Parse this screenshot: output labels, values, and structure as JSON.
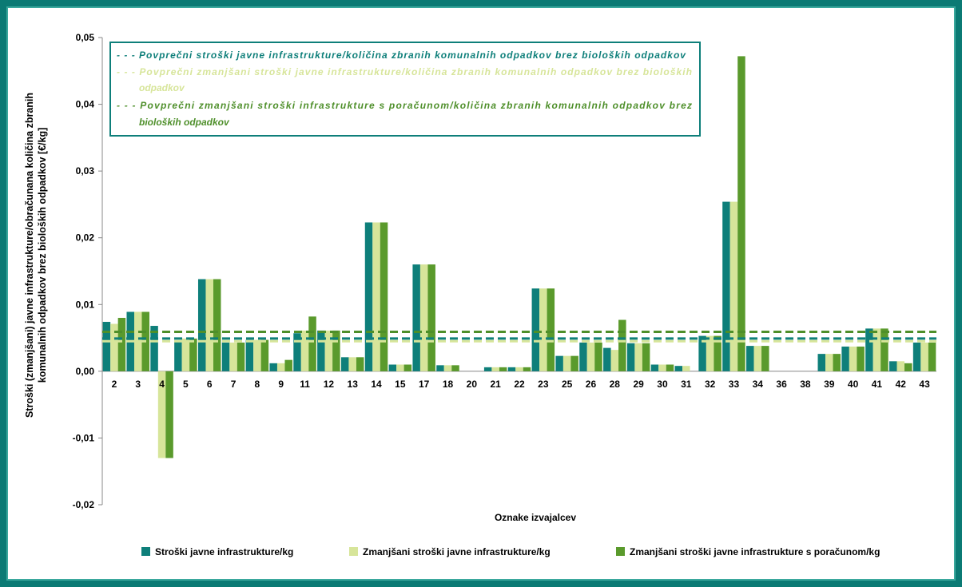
{
  "chart_data": {
    "type": "bar",
    "ylabel": "Stroški (zmanjšani) javne infrastrukture/obračunana količina zbranih komunalnih odpadkov brez bioloških odpadkov [€/kg]",
    "xlabel": "Oznake izvajalcev",
    "ylim": [
      -0.02,
      0.05
    ],
    "yticks": [
      "-0,02",
      "-0,01",
      "0,00",
      "0,01",
      "0,02",
      "0,03",
      "0,04",
      "0,05"
    ],
    "categories": [
      "2",
      "3",
      "4",
      "5",
      "6",
      "7",
      "8",
      "9",
      "11",
      "12",
      "13",
      "14",
      "15",
      "17",
      "18",
      "20",
      "21",
      "22",
      "23",
      "25",
      "26",
      "28",
      "29",
      "30",
      "31",
      "32",
      "33",
      "34",
      "36",
      "38",
      "39",
      "40",
      "41",
      "42",
      "43"
    ],
    "series": [
      {
        "name": "Stroški javne infrastrukture/kg",
        "color": "#0e7f7a",
        "values": [
          0.0074,
          0.0089,
          0.0068,
          0.0045,
          0.0138,
          0.0043,
          0.0047,
          0.0012,
          0.0057,
          0.0061,
          0.0021,
          0.0223,
          0.001,
          0.016,
          0.0009,
          0.0,
          0.0006,
          0.0006,
          0.0124,
          0.0023,
          0.0043,
          0.0035,
          0.0042,
          0.001,
          0.0008,
          0.0053,
          0.0254,
          0.0038,
          0.0,
          0.0,
          0.0026,
          0.0037,
          0.0064,
          0.0015,
          0.0043
        ]
      },
      {
        "name": "Zmanjšani stroški javne infrastrukture/kg",
        "color": "#d7e59a",
        "values": [
          0.0071,
          0.0089,
          -0.013,
          0.0049,
          0.0138,
          0.0043,
          0.0047,
          0.0012,
          0.0061,
          0.0061,
          0.0021,
          0.0223,
          0.001,
          0.016,
          0.0009,
          0.0,
          0.0006,
          0.0006,
          0.0124,
          0.0023,
          0.0043,
          0.0032,
          0.0042,
          0.001,
          0.0008,
          0.0053,
          0.0254,
          0.0038,
          0.0,
          0.0,
          0.0026,
          0.0037,
          0.0064,
          0.0015,
          0.0043
        ]
      },
      {
        "name": "Zmanjšani stroški javne infrastrukture s poračunom/kg",
        "color": "#5a9a2c",
        "values": [
          0.008,
          0.0089,
          -0.013,
          0.0049,
          0.0138,
          0.0043,
          0.0047,
          0.0017,
          0.0082,
          0.0061,
          0.0021,
          0.0223,
          0.001,
          0.016,
          0.0009,
          0.0,
          0.0006,
          0.0006,
          0.0124,
          0.0023,
          0.0043,
          0.0077,
          0.0042,
          0.001,
          0.0,
          0.0053,
          0.0472,
          0.0038,
          0.0,
          0.0,
          0.0026,
          0.0037,
          0.0064,
          0.0012,
          0.0043
        ]
      }
    ],
    "average_lines": [
      {
        "name": "Povprečni stroški javne infrastrukture/količina zbranih komunalnih odpadkov brez bioloških odpadkov",
        "lines": [
          "- - -  Povprečni stroški javne infrastrukture/količina zbranih komunalnih odpadkov brez bioloških odpadkov"
        ],
        "value": 0.0049,
        "color": "#0e7f7a"
      },
      {
        "name": "Povprečni zmanjšani stroški javne infrastrukture/količina zbranih komunalnih odpadkov brez bioloških odpadkov",
        "lines": [
          "- - - Povprečni zmanjšani stroški javne infrastrukture/količina zbranih komunalnih odpadkov brez bioloških",
          "odpadkov"
        ],
        "value": 0.0045,
        "color": "#d7e59a"
      },
      {
        "name": "Povprečni zmanjšani stroški infrastrukture s poračunom/količina zbranih komunalnih odpadkov brez bioloških odpadkov",
        "lines": [
          "- - - Povprečni zmanjšani stroški infrastrukture s poračunom/količina zbranih komunalnih odpadkov brez",
          "bioloških odpadkov"
        ],
        "value": 0.0059,
        "color": "#4e8f2a"
      }
    ],
    "grid": false,
    "legend_position": "bottom"
  }
}
